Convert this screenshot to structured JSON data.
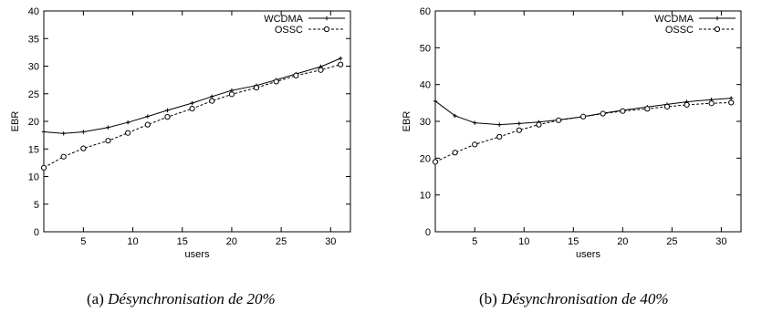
{
  "chart_data": [
    {
      "type": "line",
      "caption_label": "(a)",
      "caption_text": "Désynchronisation de 20%",
      "xlabel": "users",
      "ylabel": "EBR",
      "xlim": [
        1,
        32
      ],
      "ylim": [
        0,
        40
      ],
      "xticks": [
        5,
        10,
        15,
        20,
        25,
        30
      ],
      "yticks": [
        0,
        5,
        10,
        15,
        20,
        25,
        30,
        35,
        40
      ],
      "grid": false,
      "legend": "top-right",
      "series": [
        {
          "name": "WCDMA",
          "style": "solid",
          "marker": "plus",
          "x": [
            1,
            3,
            5,
            7.5,
            9.5,
            11.5,
            13.5,
            16,
            18,
            20,
            22.5,
            24.5,
            26.5,
            29,
            31
          ],
          "y": [
            18.1,
            17.8,
            18.1,
            18.9,
            19.8,
            20.9,
            22.0,
            23.3,
            24.5,
            25.6,
            26.5,
            27.5,
            28.6,
            29.9,
            31.4
          ]
        },
        {
          "name": "OSSC",
          "style": "dashed",
          "marker": "circle",
          "x": [
            1,
            3,
            5,
            7.5,
            9.5,
            11.5,
            13.5,
            16,
            18,
            20,
            22.5,
            24.5,
            26.5,
            29,
            31
          ],
          "y": [
            11.6,
            13.6,
            15.1,
            16.5,
            17.9,
            19.4,
            20.8,
            22.3,
            23.7,
            24.9,
            26.1,
            27.2,
            28.3,
            29.3,
            30.3
          ]
        }
      ]
    },
    {
      "type": "line",
      "caption_label": "(b)",
      "caption_text": "Désynchronisation de 40%",
      "xlabel": "users",
      "ylabel": "EBR",
      "xlim": [
        1,
        32
      ],
      "ylim": [
        0,
        60
      ],
      "xticks": [
        5,
        10,
        15,
        20,
        25,
        30
      ],
      "yticks": [
        0,
        10,
        20,
        30,
        40,
        50,
        60
      ],
      "grid": false,
      "legend": "top-right",
      "series": [
        {
          "name": "WCDMA",
          "style": "solid",
          "marker": "plus",
          "x": [
            1,
            3,
            5,
            7.5,
            9.5,
            11.5,
            13.5,
            16,
            18,
            20,
            22.5,
            24.5,
            26.5,
            29,
            31
          ],
          "y": [
            35.5,
            31.5,
            29.6,
            29.1,
            29.4,
            29.8,
            30.4,
            31.3,
            32.2,
            33.0,
            33.9,
            34.6,
            35.3,
            35.9,
            36.3
          ]
        },
        {
          "name": "OSSC",
          "style": "dashed",
          "marker": "circle",
          "x": [
            1,
            3,
            5,
            7.5,
            9.5,
            11.5,
            13.5,
            16,
            18,
            20,
            22.5,
            24.5,
            26.5,
            29,
            31
          ],
          "y": [
            19.0,
            21.5,
            23.7,
            25.8,
            27.6,
            29.1,
            30.3,
            31.3,
            32.1,
            32.8,
            33.4,
            34.0,
            34.5,
            34.9,
            35.1
          ]
        }
      ]
    }
  ]
}
